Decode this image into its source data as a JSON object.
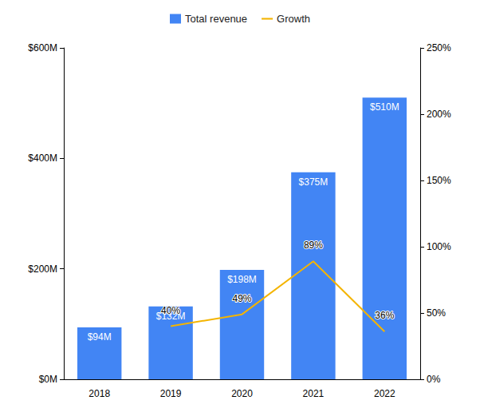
{
  "chart_data": {
    "type": "bar",
    "categories": [
      "2018",
      "2019",
      "2020",
      "2021",
      "2022"
    ],
    "series": [
      {
        "name": "Total revenue",
        "type": "bar",
        "color": "#4285f4",
        "values": [
          94,
          132,
          198,
          375,
          510
        ],
        "value_labels": [
          "$94M",
          "$132M",
          "$198M",
          "$375M",
          "$510M"
        ]
      },
      {
        "name": "Growth",
        "type": "line",
        "axis": "y2",
        "color": "#f4b400",
        "values": [
          null,
          40,
          49,
          89,
          36
        ],
        "value_labels": [
          null,
          "40%",
          "49%",
          "89%",
          "36%"
        ]
      }
    ],
    "ylim": [
      0,
      600
    ],
    "yticks": [
      {
        "value": 0,
        "label": "$0M"
      },
      {
        "value": 200,
        "label": "$200M"
      },
      {
        "value": 400,
        "label": "$400M"
      },
      {
        "value": 600,
        "label": "$600M"
      }
    ],
    "y2lim": [
      0,
      250
    ],
    "y2ticks": [
      {
        "value": 0,
        "label": "0%"
      },
      {
        "value": 50,
        "label": "50%"
      },
      {
        "value": 100,
        "label": "100%"
      },
      {
        "value": 150,
        "label": "150%"
      },
      {
        "value": 200,
        "label": "200%"
      },
      {
        "value": 250,
        "label": "250%"
      }
    ],
    "grid": false,
    "legend": "top",
    "data_labels": true
  }
}
